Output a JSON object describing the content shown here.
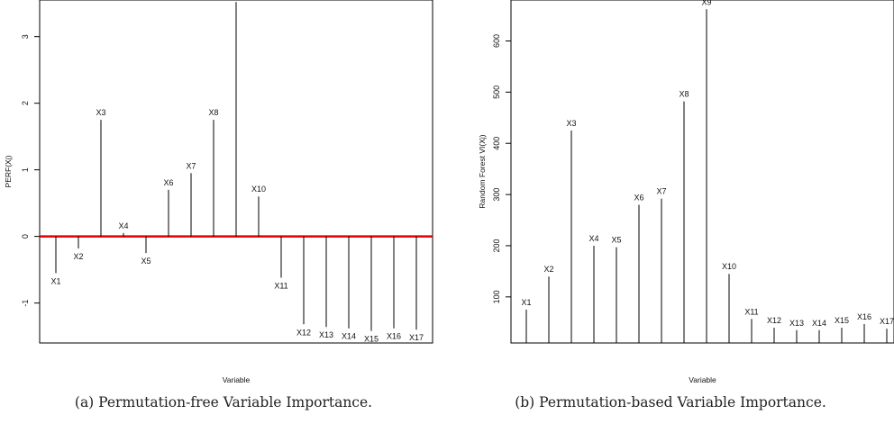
{
  "captions": {
    "a": "(a) Permutation-free Variable Importance.",
    "b": "(b) Permutation-based Variable Importance."
  },
  "chart_data": [
    {
      "type": "bar",
      "style": "vertical-lines",
      "title": "",
      "xlabel": "Variable",
      "ylabel": "PERF(Xj)",
      "categories": [
        "X1",
        "X2",
        "X3",
        "X4",
        "X5",
        "X6",
        "X7",
        "X8",
        "X9",
        "X10",
        "X11",
        "X12",
        "X13",
        "X14",
        "X15",
        "X16",
        "X17"
      ],
      "values": [
        -0.55,
        -0.18,
        1.75,
        0.05,
        -0.25,
        0.7,
        0.95,
        1.75,
        3.52,
        0.6,
        -0.62,
        -1.32,
        -1.36,
        -1.38,
        -1.42,
        -1.38,
        -1.4
      ],
      "ylim": [
        -1.6,
        3.55
      ],
      "yticks": [
        "-1",
        "0",
        "1",
        "2",
        "3"
      ],
      "ytick_values": [
        -1,
        0,
        1,
        2,
        3
      ],
      "reference_line": {
        "y": 0,
        "color": "#e00000"
      },
      "grid": false,
      "legend": "none"
    },
    {
      "type": "bar",
      "style": "vertical-lines",
      "title": "",
      "xlabel": "Variable",
      "ylabel": "Random Forest VI(Xj)",
      "categories": [
        "X1",
        "X2",
        "X3",
        "X4",
        "X5",
        "X6",
        "X7",
        "X8",
        "X9",
        "X10",
        "X11",
        "X12",
        "X13",
        "X14",
        "X15",
        "X16",
        "X17"
      ],
      "values": [
        75,
        140,
        425,
        200,
        197,
        280,
        292,
        482,
        662,
        145,
        57,
        40,
        35,
        35,
        40,
        47,
        38
      ],
      "ylim": [
        10,
        680
      ],
      "yticks": [
        "100",
        "200",
        "300",
        "400",
        "500",
        "600"
      ],
      "ytick_values": [
        100,
        200,
        300,
        400,
        500,
        600
      ],
      "grid": false,
      "legend": "none"
    }
  ]
}
